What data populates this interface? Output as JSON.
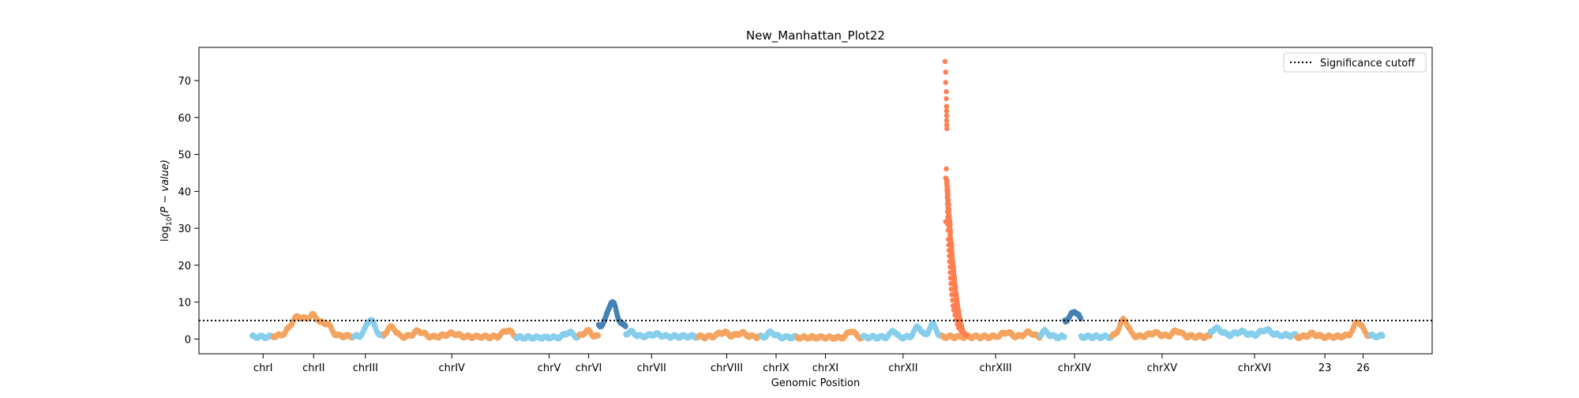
{
  "chart_data": {
    "type": "scatter",
    "title": "New_Manhattan_Plot22",
    "xlabel": "Genomic Position",
    "ylabel_main": "log",
    "ylabel_sub": "10",
    "ylabel_rest": "(P − value)",
    "ylim": [
      -4,
      79
    ],
    "yticks": [
      0,
      10,
      20,
      30,
      40,
      50,
      60,
      70
    ],
    "xlim": [
      0,
      100
    ],
    "grid": false,
    "legend": {
      "placement": "top-right",
      "entries": [
        {
          "label": "Significance cutoff",
          "style": "dotted"
        }
      ]
    },
    "significance_cutoff": 5,
    "colors": {
      "sky": "#87ceeb",
      "orange": "#f4a460",
      "coral": "#ff7f50",
      "steel": "#4682b4",
      "cutoff": "#000000"
    },
    "chromosomes": [
      {
        "label": "chrI",
        "start": 4.3,
        "end": 6.0,
        "color": "sky",
        "base": 0.6,
        "peaks": []
      },
      {
        "label": "chrII",
        "start": 6.0,
        "end": 12.5,
        "color": "orange",
        "base": 0.8,
        "peaks": [
          [
            8.0,
            5.0,
            0.8
          ],
          [
            9.3,
            5.2,
            0.7
          ],
          [
            10.4,
            3.0,
            0.5
          ]
        ]
      },
      {
        "label": "chrIII",
        "start": 12.5,
        "end": 15.0,
        "color": "sky",
        "base": 0.7,
        "peaks": [
          [
            13.9,
            4.5,
            0.5
          ]
        ]
      },
      {
        "label": "chrIV",
        "start": 15.0,
        "end": 25.7,
        "color": "orange",
        "base": 0.6,
        "peaks": [
          [
            15.6,
            2.6,
            0.5
          ],
          [
            17.8,
            1.5,
            0.6
          ],
          [
            20.5,
            0.9,
            0.7
          ],
          [
            25.0,
            1.8,
            0.5
          ]
        ]
      },
      {
        "label": "chrV",
        "start": 25.7,
        "end": 30.8,
        "color": "sky",
        "base": 0.4,
        "peaks": [
          [
            30.0,
            1.4,
            0.5
          ]
        ]
      },
      {
        "label": "chrVI",
        "start": 30.8,
        "end": 32.4,
        "color": "orange",
        "base": 0.7,
        "peaks": [
          [
            31.5,
            1.5,
            0.4
          ]
        ]
      },
      {
        "label": "chrVI-peak",
        "start": 32.4,
        "end": 34.6,
        "color": "steel",
        "base": 3.5,
        "peaks": [
          [
            33.5,
            6.5,
            0.5
          ]
        ]
      },
      {
        "label": "chrVII",
        "start": 34.6,
        "end": 40.5,
        "color": "sky",
        "base": 0.7,
        "peaks": [
          [
            35.0,
            1.2,
            0.5
          ],
          [
            37.0,
            0.6,
            0.6
          ]
        ]
      },
      {
        "label": "chrVIII",
        "start": 40.5,
        "end": 45.6,
        "color": "orange",
        "base": 0.6,
        "peaks": [
          [
            42.5,
            1.2,
            0.6
          ],
          [
            44.0,
            1.0,
            0.5
          ]
        ]
      },
      {
        "label": "chrIX",
        "start": 45.6,
        "end": 48.5,
        "color": "sky",
        "base": 0.5,
        "peaks": [
          [
            46.4,
            1.3,
            0.4
          ]
        ]
      },
      {
        "label": "chrXI",
        "start": 48.5,
        "end": 53.8,
        "color": "orange",
        "base": 0.4,
        "peaks": [
          [
            52.9,
            1.8,
            0.4
          ]
        ]
      },
      {
        "label": "chrXII",
        "start": 53.8,
        "end": 60.3,
        "color": "sky",
        "base": 0.5,
        "peaks": [
          [
            56.3,
            1.8,
            0.3
          ],
          [
            58.3,
            2.8,
            0.4
          ],
          [
            59.5,
            3.5,
            0.4
          ]
        ]
      },
      {
        "label": "chrXIII",
        "start": 60.3,
        "end": 68.2,
        "color": "orange",
        "base": 0.6,
        "peaks": [
          [
            65.5,
            1.2,
            0.5
          ],
          [
            67.3,
            1.2,
            0.5
          ]
        ]
      },
      {
        "label": "chrXIII-peak",
        "start": 60.3,
        "end": 62.4,
        "color": "coral",
        "base": 0.0,
        "peaks": []
      },
      {
        "label": "chrXIV",
        "start": 68.2,
        "end": 70.2,
        "color": "sky",
        "base": 0.6,
        "peaks": [
          [
            68.6,
            1.5,
            0.4
          ]
        ]
      },
      {
        "label": "chrXIV-peak",
        "start": 70.2,
        "end": 71.5,
        "color": "steel",
        "base": 5.0,
        "peaks": [
          [
            71.0,
            2.5,
            0.4
          ]
        ]
      },
      {
        "label": "chrXIV",
        "start": 71.5,
        "end": 74.0,
        "color": "sky",
        "base": 0.6,
        "peaks": []
      },
      {
        "label": "chrXV",
        "start": 74.0,
        "end": 82.0,
        "color": "orange",
        "base": 0.7,
        "peaks": [
          [
            75.0,
            4.5,
            0.5
          ],
          [
            77.5,
            1.0,
            0.6
          ],
          [
            79.3,
            1.5,
            0.5
          ]
        ]
      },
      {
        "label": "chrXVI",
        "start": 82.0,
        "end": 89.0,
        "color": "sky",
        "base": 1.0,
        "peaks": [
          [
            82.5,
            1.8,
            0.6
          ],
          [
            84.5,
            1.0,
            0.6
          ],
          [
            86.5,
            1.5,
            0.6
          ]
        ]
      },
      {
        "label": "23",
        "start": 89.0,
        "end": 92.5,
        "color": "orange",
        "base": 0.6,
        "peaks": [
          [
            90.3,
            0.8,
            0.5
          ]
        ]
      },
      {
        "label": "26",
        "start": 92.5,
        "end": 95.0,
        "color": "orange",
        "base": 0.8,
        "peaks": [
          [
            94.0,
            3.8,
            0.5
          ]
        ]
      },
      {
        "label": "26-tail",
        "start": 95.0,
        "end": 96.0,
        "color": "sky",
        "base": 0.8,
        "peaks": []
      }
    ],
    "xticks": [
      {
        "label": "chrI",
        "x": 5.2
      },
      {
        "label": "chrII",
        "x": 9.3
      },
      {
        "label": "chrIII",
        "x": 13.5
      },
      {
        "label": "chrIV",
        "x": 20.5
      },
      {
        "label": "chrV",
        "x": 28.4
      },
      {
        "label": "chrVI",
        "x": 31.6
      },
      {
        "label": "chrVII",
        "x": 36.7
      },
      {
        "label": "chrVIII",
        "x": 42.8
      },
      {
        "label": "chrIX",
        "x": 46.8
      },
      {
        "label": "chrXI",
        "x": 50.8
      },
      {
        "label": "chrXII",
        "x": 57.1
      },
      {
        "label": "chrXIII",
        "x": 64.6
      },
      {
        "label": "chrXIV",
        "x": 71.0
      },
      {
        "label": "chrXV",
        "x": 78.1
      },
      {
        "label": "chrXVI",
        "x": 85.6
      },
      {
        "label": "23",
        "x": 91.3
      },
      {
        "label": "26",
        "x": 94.4
      }
    ],
    "major_peak": {
      "chromosome": "chrXIII",
      "points": [
        [
          60.5,
          75.2
        ],
        [
          60.55,
          72.3
        ],
        [
          60.55,
          69.5
        ],
        [
          60.6,
          67.0
        ],
        [
          60.6,
          65.1
        ],
        [
          60.62,
          63.0
        ],
        [
          60.62,
          61.8
        ],
        [
          60.63,
          60.5
        ],
        [
          60.63,
          59.2
        ],
        [
          60.64,
          58.0
        ],
        [
          60.65,
          57.0
        ],
        [
          60.55,
          43.6
        ],
        [
          60.6,
          46.1
        ],
        [
          60.55,
          31.8
        ],
        [
          60.65,
          42.5
        ],
        [
          60.66,
          40.2
        ],
        [
          60.68,
          38.5
        ],
        [
          60.7,
          36.5
        ],
        [
          60.7,
          34.5
        ],
        [
          60.72,
          33.0
        ],
        [
          60.73,
          31.0
        ],
        [
          60.75,
          29.5
        ],
        [
          60.77,
          27.0
        ],
        [
          60.8,
          25.5
        ],
        [
          60.82,
          24.0
        ],
        [
          60.85,
          22.5
        ],
        [
          60.87,
          21.0
        ],
        [
          60.9,
          19.5
        ],
        [
          60.92,
          18.0
        ],
        [
          60.95,
          16.5
        ],
        [
          60.98,
          15.0
        ],
        [
          61.0,
          13.5
        ],
        [
          61.05,
          12.0
        ],
        [
          61.1,
          10.5
        ],
        [
          61.15,
          9.0
        ],
        [
          61.2,
          7.8
        ],
        [
          61.3,
          6.5
        ],
        [
          61.4,
          5.2
        ],
        [
          61.5,
          4.0
        ],
        [
          61.6,
          3.0
        ],
        [
          61.8,
          2.2
        ],
        [
          62.0,
          1.6
        ],
        [
          62.2,
          1.2
        ]
      ]
    }
  }
}
